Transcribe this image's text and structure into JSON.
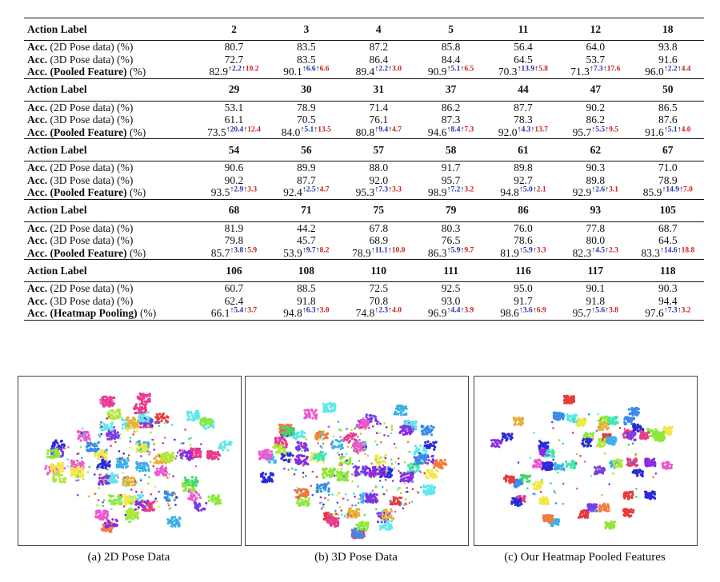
{
  "table": {
    "blocks": [
      {
        "header": "Action Label",
        "cols": [
          "2",
          "3",
          "4",
          "5",
          "11",
          "12",
          "18"
        ],
        "rows": [
          {
            "pre": "Acc.",
            "rest": " (2D Pose data) (%)",
            "vals": [
              "80.7",
              "83.5",
              "87.2",
              "85.8",
              "56.4",
              "64.0",
              "93.8"
            ]
          },
          {
            "pre": "Acc.",
            "rest": " (3D Pose data) (%)",
            "vals": [
              "72.7",
              "83.5",
              "86.4",
              "84.4",
              "64.5",
              "53.7",
              "91.6"
            ]
          },
          {
            "pre": "Acc. (Pooled Feature)",
            "rest": " (%)",
            "vals": [
              "82.9",
              "90.1",
              "89.4",
              "90.9",
              "70.3",
              "71.3",
              "96.0"
            ],
            "g1": [
              "2.2",
              "6.6",
              "2.2",
              "5.1",
              "13.9",
              "7.3",
              "2.2"
            ],
            "g2": [
              "10.2",
              "6.6",
              "3.0",
              "6.5",
              "5.8",
              "17.6",
              "4.4"
            ]
          }
        ]
      },
      {
        "header": "Action Label",
        "cols": [
          "29",
          "30",
          "31",
          "37",
          "44",
          "47",
          "50"
        ],
        "rows": [
          {
            "pre": "Acc.",
            "rest": " (2D Pose data) (%)",
            "vals": [
              "53.1",
              "78.9",
              "71.4",
              "86.2",
              "87.7",
              "90.2",
              "86.5"
            ]
          },
          {
            "pre": "Acc.",
            "rest": " (3D Pose data) (%)",
            "vals": [
              "61.1",
              "70.5",
              "76.1",
              "87.3",
              "78.3",
              "86.2",
              "87.6"
            ]
          },
          {
            "pre": "Acc. (Pooled Feature)",
            "rest": " (%)",
            "vals": [
              "73.5",
              "84.0",
              "80.8",
              "94.6",
              "92.0",
              "95.7",
              "91.6"
            ],
            "g1": [
              "20.4",
              "5.1",
              "9.4",
              "8.4",
              "4.3",
              "5.5",
              "5.1"
            ],
            "g2": [
              "12.4",
              "13.5",
              "4.7",
              "7.3",
              "13.7",
              "9.5",
              "4.0"
            ]
          }
        ]
      },
      {
        "header": "Action Label",
        "cols": [
          "54",
          "56",
          "57",
          "58",
          "61",
          "62",
          "67"
        ],
        "rows": [
          {
            "pre": "Acc.",
            "rest": " (2D Pose data) (%)",
            "vals": [
              "90.6",
              "89.9",
              "88.0",
              "91.7",
              "89.8",
              "90.3",
              "71.0"
            ]
          },
          {
            "pre": "Acc.",
            "rest": " (3D Pose data) (%)",
            "vals": [
              "90.2",
              "87.7",
              "92.0",
              "95.7",
              "92.7",
              "89.8",
              "78.9"
            ]
          },
          {
            "pre": "Acc. (Pooled Feature)",
            "rest": " (%)",
            "vals": [
              "93.5",
              "92.4",
              "95.3",
              "98.9",
              "94.8",
              "92.9",
              "85.9"
            ],
            "g1": [
              "2.9",
              "2.5",
              "7.3",
              "7.2",
              "5.0",
              "2.6",
              "14.9"
            ],
            "g2": [
              "3.3",
              "4.7",
              "3.3",
              "3.2",
              "2.1",
              "3.1",
              "7.0"
            ]
          }
        ]
      },
      {
        "header": "Action Label",
        "cols": [
          "68",
          "71",
          "75",
          "79",
          "86",
          "93",
          "105"
        ],
        "rows": [
          {
            "pre": "Acc.",
            "rest": " (2D Pose data) (%)",
            "vals": [
              "81.9",
              "44.2",
              "67.8",
              "80.3",
              "76.0",
              "77.8",
              "68.7"
            ]
          },
          {
            "pre": "Acc.",
            "rest": " (3D Pose data) (%)",
            "vals": [
              "79.8",
              "45.7",
              "68.9",
              "76.5",
              "78.6",
              "80.0",
              "64.5"
            ]
          },
          {
            "pre": "Acc. (Pooled Feature)",
            "rest": " (%)",
            "vals": [
              "85.7",
              "53.9",
              "78.9",
              "86.3",
              "81.9",
              "82.3",
              "83.3"
            ],
            "g1": [
              "3.8",
              "9.7",
              "11.1",
              "5.9",
              "5.9",
              "4.5",
              "14.6"
            ],
            "g2": [
              "5.9",
              "8.2",
              "10.0",
              "9.7",
              "3.3",
              "2.3",
              "18.8"
            ]
          }
        ]
      },
      {
        "header": "Action Label",
        "cols": [
          "106",
          "108",
          "110",
          "111",
          "116",
          "117",
          "118"
        ],
        "rows": [
          {
            "pre": "Acc.",
            "rest": " (2D Pose data) (%)",
            "vals": [
              "60.7",
              "88.5",
              "72.5",
              "92.5",
              "95.0",
              "90.1",
              "90.3"
            ]
          },
          {
            "pre": "Acc.",
            "rest": " (3D Pose data) (%)",
            "vals": [
              "62.4",
              "91.8",
              "70.8",
              "93.0",
              "91.7",
              "91.8",
              "94.4"
            ]
          },
          {
            "pre": "Acc. (Heatmap Pooling)",
            "rest": " (%)",
            "vals": [
              "66.1",
              "94.8",
              "74.8",
              "96.9",
              "98.6",
              "95.7",
              "97.6"
            ],
            "g1": [
              "5.4",
              "6.3",
              "2.3",
              "4.4",
              "3.6",
              "5.6",
              "7.3"
            ],
            "g2": [
              "3.7",
              "3.0",
              "4.0",
              "3.9",
              "6.9",
              "3.8",
              "3.2"
            ]
          }
        ]
      }
    ]
  },
  "gain_colors": {
    "vs_2d": "#1f2fb5",
    "vs_3d": "#c82020"
  },
  "arrow_glyph": "↑",
  "figures": [
    {
      "caption": "(a) 2D Pose Data"
    },
    {
      "caption": "(b) 3D Pose Data"
    },
    {
      "caption": "(c) Our Heatmap Pooled Features"
    }
  ]
}
